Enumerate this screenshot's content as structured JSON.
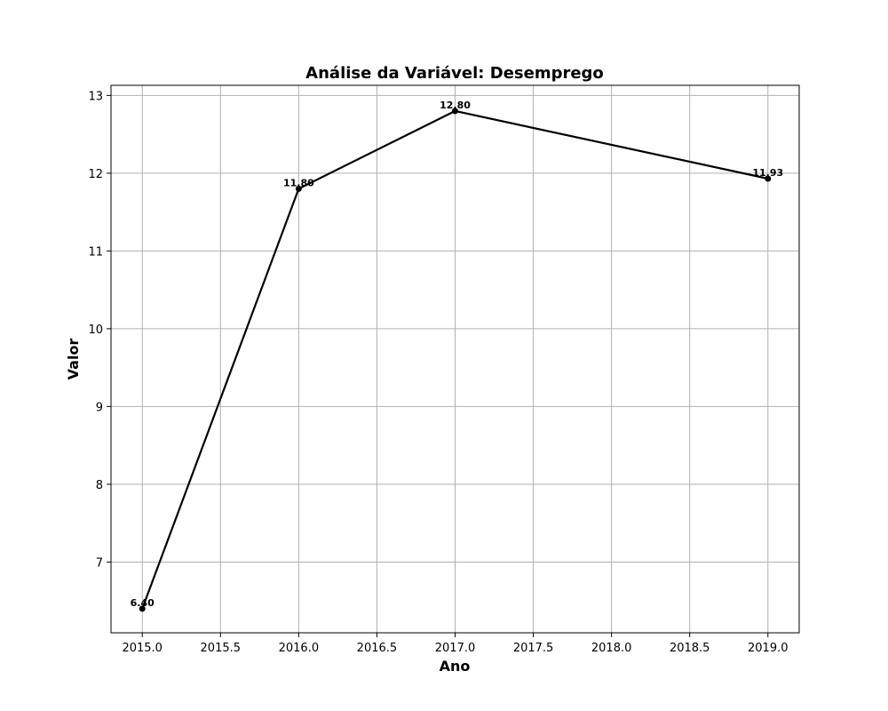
{
  "chart_data": {
    "type": "line",
    "title": "Análise da Variável: Desemprego",
    "xlabel": "Ano",
    "ylabel": "Valor",
    "xlim": [
      2014.8,
      2019.2
    ],
    "ylim": [
      6.09,
      13.13
    ],
    "xticks": [
      2015.0,
      2015.5,
      2016.0,
      2016.5,
      2017.0,
      2017.5,
      2018.0,
      2018.5,
      2019.0
    ],
    "xtick_labels": [
      "2015.0",
      "2015.5",
      "2016.0",
      "2016.5",
      "2017.0",
      "2017.5",
      "2018.0",
      "2018.5",
      "2019.0"
    ],
    "yticks": [
      7,
      8,
      9,
      10,
      11,
      12,
      13
    ],
    "ytick_labels": [
      "7",
      "8",
      "9",
      "10",
      "11",
      "12",
      "13"
    ],
    "grid": true,
    "x": [
      2015,
      2016,
      2017,
      2019
    ],
    "y": [
      6.4,
      11.8,
      12.8,
      11.93
    ],
    "data_labels": [
      "6.40",
      "11.80",
      "12.80",
      "11.93"
    ],
    "line_color": "#000000",
    "marker_color": "#000000"
  }
}
